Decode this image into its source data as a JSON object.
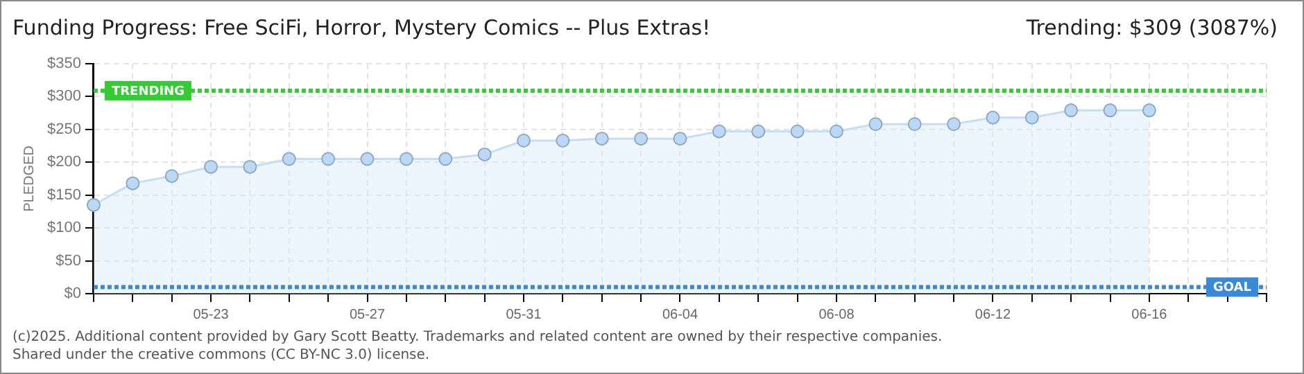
{
  "chart_data": {
    "type": "area",
    "title": "Funding Progress: Free SciFi, Horror, Mystery Comics -- Plus Extras!",
    "ylabel": "PLEDGED",
    "categories": [
      null,
      null,
      null,
      "05-23",
      null,
      null,
      null,
      "05-27",
      null,
      null,
      null,
      "05-31",
      null,
      null,
      null,
      "06-04",
      null,
      null,
      null,
      "06-08",
      null,
      null,
      null,
      "06-12",
      null,
      null,
      null,
      "06-16",
      null,
      null,
      null
    ],
    "series": [
      {
        "color": "#bcd8f5",
        "values": [
          135,
          168,
          179,
          193,
          193,
          205,
          205,
          205,
          205,
          205,
          212,
          233,
          233,
          236,
          236,
          236,
          247,
          247,
          247,
          247,
          258,
          258,
          258,
          268,
          268,
          279,
          279,
          279,
          null,
          null,
          null
        ]
      }
    ],
    "ylim": [
      0,
      350
    ],
    "yticks": [
      {
        "value": 0,
        "label": "$0"
      },
      {
        "value": 50,
        "label": "$50"
      },
      {
        "value": 100,
        "label": "$100"
      },
      {
        "value": 150,
        "label": "$150"
      },
      {
        "value": 200,
        "label": "$200"
      },
      {
        "value": 250,
        "label": "$250"
      },
      {
        "value": 300,
        "label": "$300"
      },
      {
        "value": 350,
        "label": "$350"
      }
    ],
    "ref_lines": [
      {
        "axis": "y",
        "value": 309,
        "label": "TRENDING",
        "color": "#33cc33",
        "line_style": "dotted"
      },
      {
        "axis": "y",
        "value": 10,
        "label": "GOAL",
        "color": "#3a88d8",
        "line_style": "dotted"
      }
    ],
    "annotations": [
      "Trending: $309 (3087%)",
      "(c)2025. Additional content provided by Gary Scott Beatty. Trademarks and related content are owned by their respective companies.",
      "Shared under the creative commons (CC BY-NC 3.0) license."
    ],
    "grid": true,
    "legend": false,
    "marker": "circle",
    "line_style": "solid"
  }
}
